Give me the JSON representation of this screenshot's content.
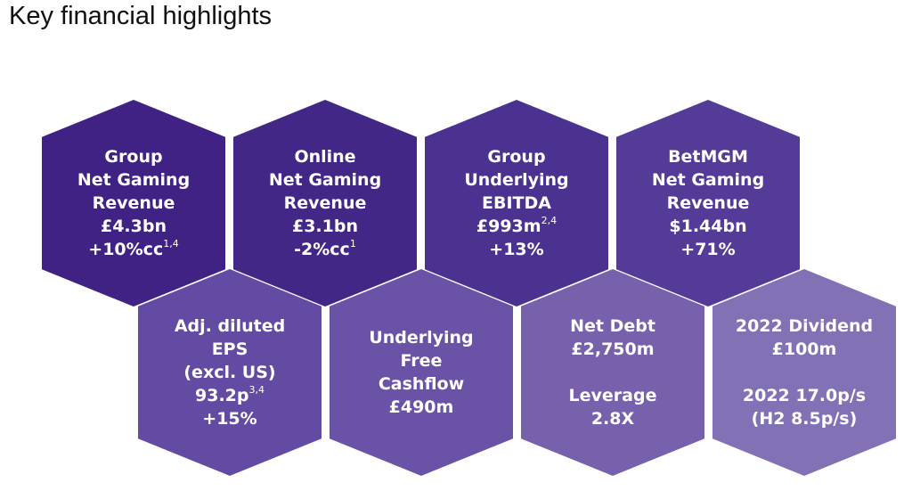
{
  "title": "Key financial highlights",
  "hexagons": [
    {
      "lines": [
        "Group",
        "Net Gaming",
        "Revenue",
        "£4.3bn"
      ],
      "last": "+10%cc",
      "sup": "1,4",
      "color": "#3f2283"
    },
    {
      "lines": [
        "Online",
        "Net Gaming",
        "Revenue",
        "£3.1bn"
      ],
      "last": "-2%cc",
      "sup": "1",
      "color": "#432787"
    },
    {
      "lines": [
        "Group",
        "Underlying",
        "EBITDA"
      ],
      "mid": "£993m",
      "mid_sup": "2,4",
      "last": "+13%",
      "color": "#4b3190"
    },
    {
      "lines": [
        "BetMGM",
        "Net Gaming",
        "Revenue",
        "$1.44bn",
        "+71%"
      ],
      "color": "#553b98"
    },
    {
      "lines": [
        "Adj. diluted",
        "EPS",
        "(excl. US)"
      ],
      "mid": "93.2p",
      "mid_sup": "3,4",
      "last": "+15%",
      "color": "#634aa2"
    },
    {
      "lines": [
        "Underlying",
        "Free",
        "Cashflow",
        "£490m"
      ],
      "color": "#6a52a7"
    },
    {
      "lines": [
        "Net Debt",
        "£2,750m"
      ],
      "lines2": [
        "Leverage",
        "2.8X"
      ],
      "color": "#7761ad"
    },
    {
      "lines": [
        "2022 Dividend",
        "£100m"
      ],
      "lines2": [
        "2022 17.0p/s",
        "(H2 8.5p/s)"
      ],
      "color": "#8371b5"
    }
  ]
}
